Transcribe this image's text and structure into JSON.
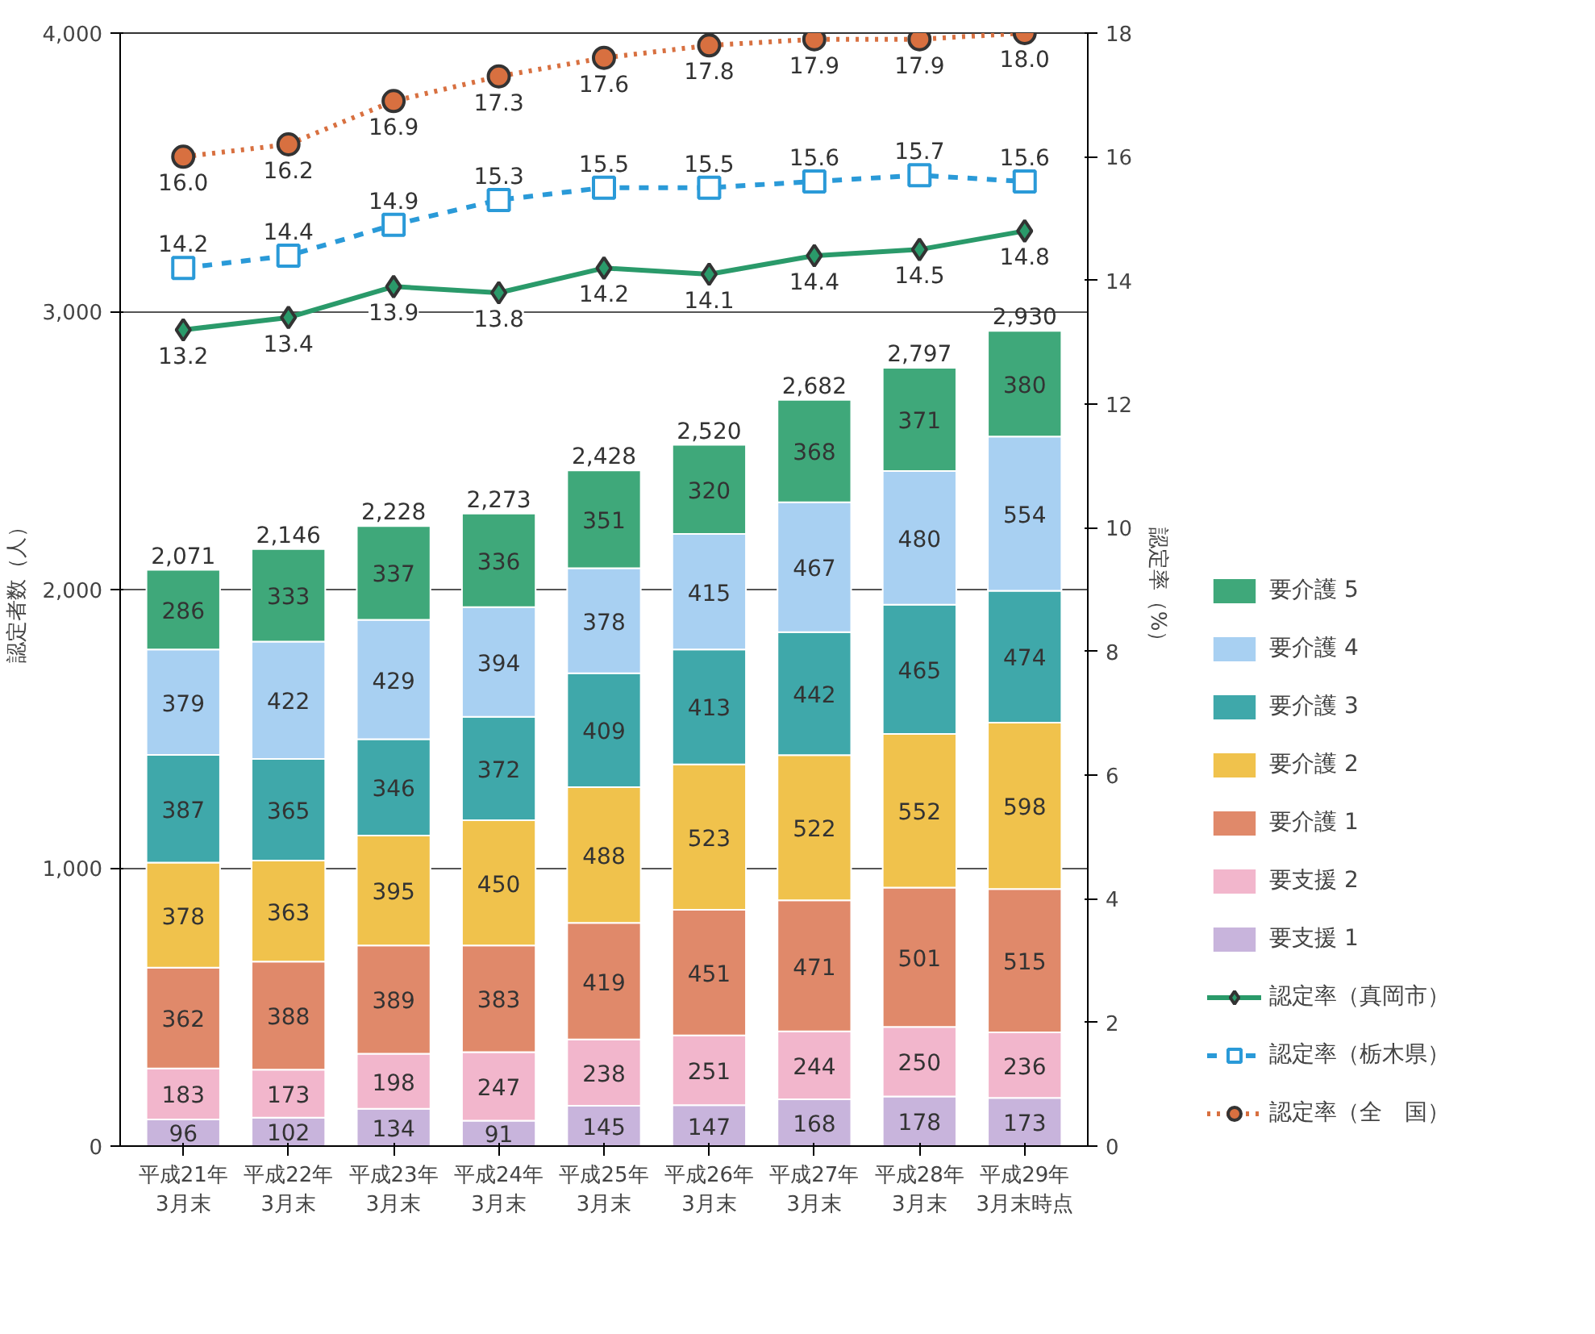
{
  "chart_data": {
    "type": "bar",
    "stacked": true,
    "categories": [
      "平成21年\n3月末",
      "平成22年\n3月末",
      "平成23年\n3月末",
      "平成24年\n3月末",
      "平成25年\n3月末",
      "平成26年\n3月末",
      "平成27年\n3月末",
      "平成28年\n3月末",
      "平成29年\n3月末時点"
    ],
    "ylabel": "認定者数（人）",
    "y2label": "認定率（%）",
    "ylim": [
      0,
      4000
    ],
    "yticks": [
      0,
      {
        "value": 1000,
        "label": "1,000"
      },
      {
        "value": 2000,
        "label": "2,000"
      },
      {
        "value": 3000,
        "label": "3,000"
      },
      {
        "value": 4000,
        "label": "4,000"
      }
    ],
    "y2lim": [
      0,
      18
    ],
    "y2ticks": [
      0,
      2,
      4,
      6,
      8,
      10,
      12,
      14,
      16,
      18
    ],
    "grid": "y",
    "legend": "right",
    "data_labels": true,
    "totals": [
      "2,071",
      "2,146",
      "2,228",
      "2,273",
      "2,428",
      "2,520",
      "2,682",
      "2,797",
      "2,930"
    ],
    "series": [
      {
        "name": "要支援 1",
        "color": "#c8b4dc",
        "values": [
          96,
          102,
          134,
          91,
          145,
          147,
          168,
          178,
          173
        ]
      },
      {
        "name": "要支援 2",
        "color": "#f2b6cc",
        "values": [
          183,
          173,
          198,
          247,
          238,
          251,
          244,
          250,
          236
        ]
      },
      {
        "name": "要介護 1",
        "color": "#e0896a",
        "values": [
          362,
          388,
          389,
          383,
          419,
          451,
          471,
          501,
          515
        ]
      },
      {
        "name": "要介護 2",
        "color": "#f0c24c",
        "values": [
          378,
          363,
          395,
          450,
          488,
          523,
          522,
          552,
          598
        ]
      },
      {
        "name": "要介護 3",
        "color": "#3fa8aa",
        "values": [
          387,
          365,
          346,
          372,
          409,
          413,
          442,
          465,
          474
        ]
      },
      {
        "name": "要介護 4",
        "color": "#a8d0f2",
        "values": [
          379,
          422,
          429,
          394,
          378,
          415,
          467,
          480,
          554
        ]
      },
      {
        "name": "要介護 5",
        "color": "#3fa87a",
        "values": [
          286,
          333,
          337,
          336,
          351,
          320,
          368,
          371,
          380
        ]
      },
      {
        "name": "認定率（真岡市）",
        "type": "line",
        "axis": "y2",
        "marker": "diamond",
        "line_style": "solid",
        "color": "#2a9a6a",
        "values": [
          13.2,
          13.4,
          13.9,
          13.8,
          14.2,
          14.1,
          14.4,
          14.5,
          14.8
        ]
      },
      {
        "name": "認定率（栃木県）",
        "type": "line",
        "axis": "y2",
        "marker": "square",
        "line_style": "dashed",
        "color": "#2a9ad8",
        "values": [
          14.2,
          14.4,
          14.9,
          15.3,
          15.5,
          15.5,
          15.6,
          15.7,
          15.6
        ]
      },
      {
        "name": "認定率（全　国）",
        "type": "line",
        "axis": "y2",
        "marker": "circle",
        "line_style": "dotted",
        "color": "#d87040",
        "values": [
          16.0,
          16.2,
          16.9,
          17.3,
          17.6,
          17.8,
          17.9,
          17.9,
          18.0
        ],
        "value_labels": [
          "16.0",
          "16.2",
          "16.9",
          "17.3",
          "17.6",
          "17.8",
          "17.9",
          "17.9",
          "18.0"
        ]
      }
    ]
  }
}
